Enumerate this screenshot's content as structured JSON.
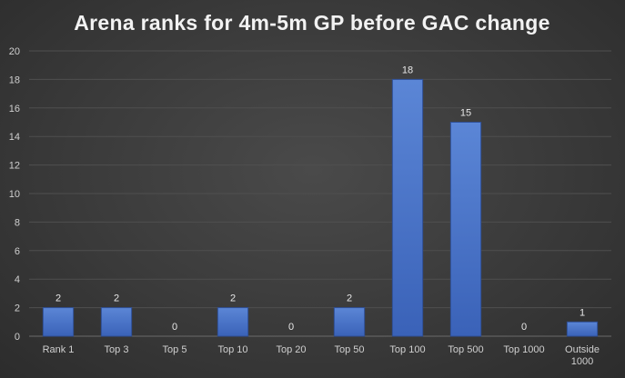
{
  "chart_data": {
    "type": "bar",
    "title": "Arena ranks for 4m-5m GP before GAC change",
    "categories": [
      [
        "Rank 1"
      ],
      [
        "Top 3"
      ],
      [
        "Top 5"
      ],
      [
        "Top 10"
      ],
      [
        "Top 20"
      ],
      [
        "Top 50"
      ],
      [
        "Top 100"
      ],
      [
        "Top 500"
      ],
      [
        "Top 1000"
      ],
      [
        "Outside",
        "1000"
      ]
    ],
    "values": [
      2,
      2,
      0,
      2,
      0,
      2,
      18,
      15,
      0,
      1
    ],
    "ylim": [
      0,
      20
    ],
    "yticks": [
      0,
      2,
      4,
      6,
      8,
      10,
      12,
      14,
      16,
      18,
      20
    ],
    "grid": true,
    "legend": "none",
    "data_labels": true,
    "colors": {
      "bar_top": "#5b86d6",
      "bar_bottom": "#3a62b8",
      "bar_edge": "#2f4f96",
      "grid": "#4f4f4f",
      "axis": "#6a6a6a",
      "text": "#d0d0d0",
      "title": "#f2f2f2"
    }
  }
}
